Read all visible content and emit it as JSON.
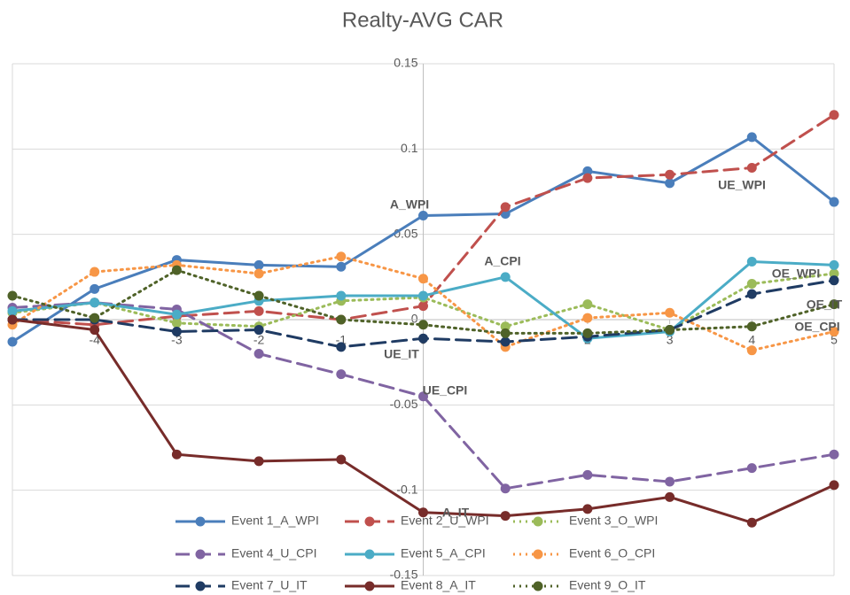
{
  "chart_data": {
    "type": "line",
    "title": "Realty-AVG CAR",
    "x": [
      -5,
      -4,
      -3,
      -2,
      -1,
      0,
      1,
      2,
      3,
      4,
      5
    ],
    "xlim": [
      -5,
      5
    ],
    "xticks": [
      -4,
      -3,
      -2,
      -1,
      0,
      1,
      2,
      3,
      4,
      5
    ],
    "ylim": [
      -0.15,
      0.15
    ],
    "yticks": [
      -0.15,
      -0.1,
      -0.05,
      0,
      0.05,
      0.1,
      0.15
    ],
    "grid": true,
    "legend": "bottom",
    "series": [
      {
        "name": "Event 1_A_WPI",
        "color": "#4a7ebb",
        "style": "solid",
        "values": [
          -0.013,
          0.018,
          0.035,
          0.032,
          0.031,
          0.061,
          0.062,
          0.087,
          0.08,
          0.107,
          0.069
        ]
      },
      {
        "name": "Event 2_U_WPI",
        "color": "#c0504d",
        "style": "dashed",
        "values": [
          0.0,
          -0.003,
          0.002,
          0.005,
          0.0,
          0.008,
          0.066,
          0.083,
          0.085,
          0.089,
          0.12
        ]
      },
      {
        "name": "Event 3_O_WPI",
        "color": "#9bbb59",
        "style": "dotted",
        "values": [
          0.004,
          0.01,
          -0.002,
          -0.004,
          0.011,
          0.013,
          -0.004,
          0.009,
          -0.006,
          0.021,
          0.027
        ]
      },
      {
        "name": "Event 4_U_CPI",
        "color": "#8064a2",
        "style": "dashed",
        "values": [
          0.007,
          0.01,
          0.006,
          -0.02,
          -0.032,
          -0.045,
          -0.099,
          -0.091,
          -0.095,
          -0.087,
          -0.079
        ]
      },
      {
        "name": "Event 5_A_CPI",
        "color": "#4bacc6",
        "style": "solid",
        "values": [
          0.005,
          0.01,
          0.003,
          0.011,
          0.014,
          0.014,
          0.025,
          -0.011,
          -0.007,
          0.034,
          0.032
        ]
      },
      {
        "name": "Event 6_O_CPI",
        "color": "#f79646",
        "style": "dotted",
        "values": [
          -0.003,
          0.028,
          0.032,
          0.027,
          0.037,
          0.024,
          -0.016,
          0.001,
          0.004,
          -0.018,
          -0.007
        ]
      },
      {
        "name": "Event 7_U_IT",
        "color": "#1f3b63",
        "style": "dashed",
        "values": [
          0.0,
          0.0,
          -0.007,
          -0.006,
          -0.016,
          -0.011,
          -0.013,
          -0.01,
          -0.006,
          0.015,
          0.023
        ]
      },
      {
        "name": "Event 8_A_IT",
        "color": "#772c2a",
        "style": "solid",
        "values": [
          0.0,
          -0.006,
          -0.079,
          -0.083,
          -0.082,
          -0.113,
          -0.115,
          -0.111,
          -0.104,
          -0.119,
          -0.097
        ]
      },
      {
        "name": "Event 9_O_IT",
        "color": "#4f6228",
        "style": "dotted",
        "values": [
          0.014,
          0.001,
          0.029,
          0.014,
          0.0,
          -0.003,
          -0.008,
          -0.008,
          -0.006,
          -0.004,
          0.009
        ]
      }
    ],
    "annotations": [
      "A_WPI",
      "UE_WPI",
      "A_CPI",
      "OE_WPI",
      "OE_IT",
      "OE_CPI",
      "UE_IT",
      "UE_CPI",
      "A_IT"
    ]
  }
}
